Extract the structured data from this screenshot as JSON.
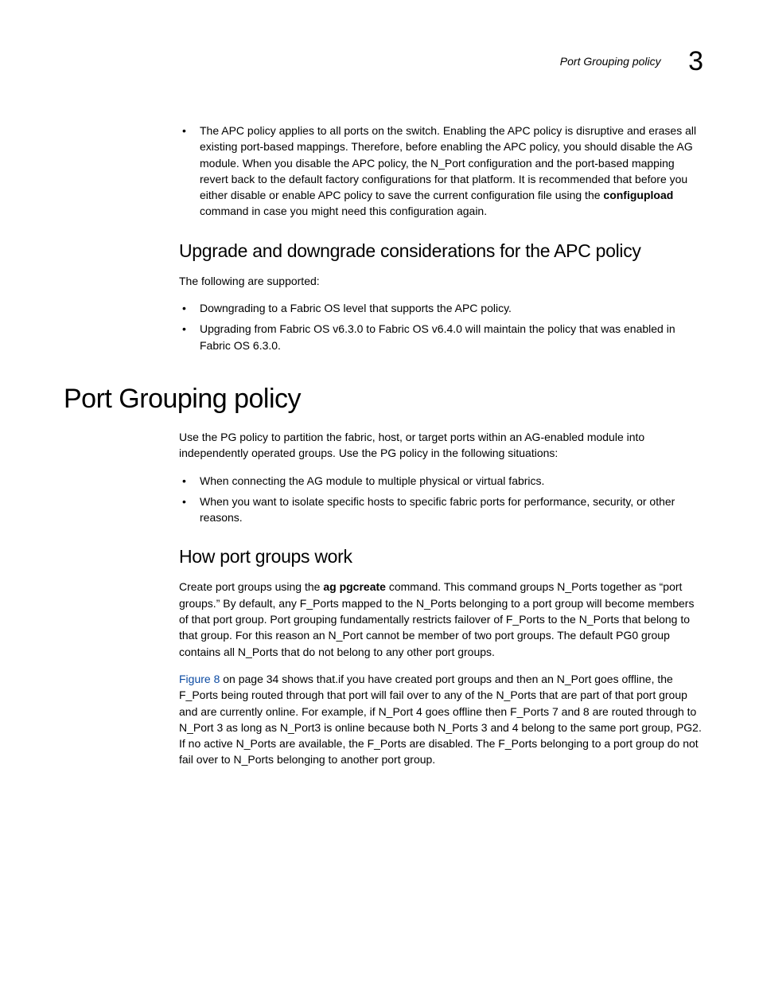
{
  "header": {
    "running_title": "Port Grouping policy",
    "chapter_number": "3"
  },
  "section1": {
    "bullets": [
      {
        "pre": "The APC policy applies to all ports on the switch. Enabling the APC policy is disruptive and erases all existing port-based mappings. Therefore, before enabling the APC policy, you should disable the AG module. When you disable the APC policy, the N_Port configuration and the port-based mapping revert back to the default factory configurations for that platform. It is recommended that before you either disable or enable APC policy to save the current configuration file using the ",
        "bold": "configupload",
        "post": " command in case you might need this configuration again."
      }
    ]
  },
  "upgrade": {
    "heading": "Upgrade and downgrade considerations for the APC policy",
    "intro": "The following are supported:",
    "bullets": [
      "Downgrading to a Fabric OS level that supports the APC policy.",
      "Upgrading from Fabric OS v6.3.0 to Fabric OS v6.4.0 will maintain the policy that was enabled in Fabric OS 6.3.0."
    ]
  },
  "pg": {
    "heading": "Port Grouping policy",
    "intro": "Use the PG policy to partition the fabric, host, or target ports within an AG-enabled module into independently operated groups. Use the PG policy in the following situations:",
    "bullets": [
      "When connecting the AG module to multiple physical or virtual fabrics.",
      "When you want to isolate specific hosts to specific fabric ports for performance, security, or other reasons."
    ]
  },
  "how": {
    "heading": "How port groups work",
    "para1": {
      "pre": "Create port groups using the ",
      "cmd1": "ag",
      "mid": "    ",
      "cmd2": "pgcreate",
      "post": " command. This command groups N_Ports together as “port groups.” By default, any F_Ports mapped to the N_Ports belonging to a port group will become members of that port group. Port grouping fundamentally restricts failover of F_Ports to the N_Ports that belong to that group. For this reason an N_Port cannot be member of two port groups. The default PG0 group contains all N_Ports that do not belong to any other port groups."
    },
    "para2": {
      "link": "Figure 8",
      "post": " on page 34 shows that.if you have created port groups and then an N_Port goes offline, the F_Ports being routed through that port will fail over to any of the N_Ports that are part of that port group and are currently online. For example, if N_Port 4 goes offline then F_Ports 7 and 8 are routed through to N_Port 3 as long as N_Port3 is online because both N_Ports 3 and 4 belong to the same port group, PG2. If no active N_Ports are available, the F_Ports are disabled. The F_Ports belonging to a port group do not fail over to N_Ports belonging to another port group."
    }
  }
}
